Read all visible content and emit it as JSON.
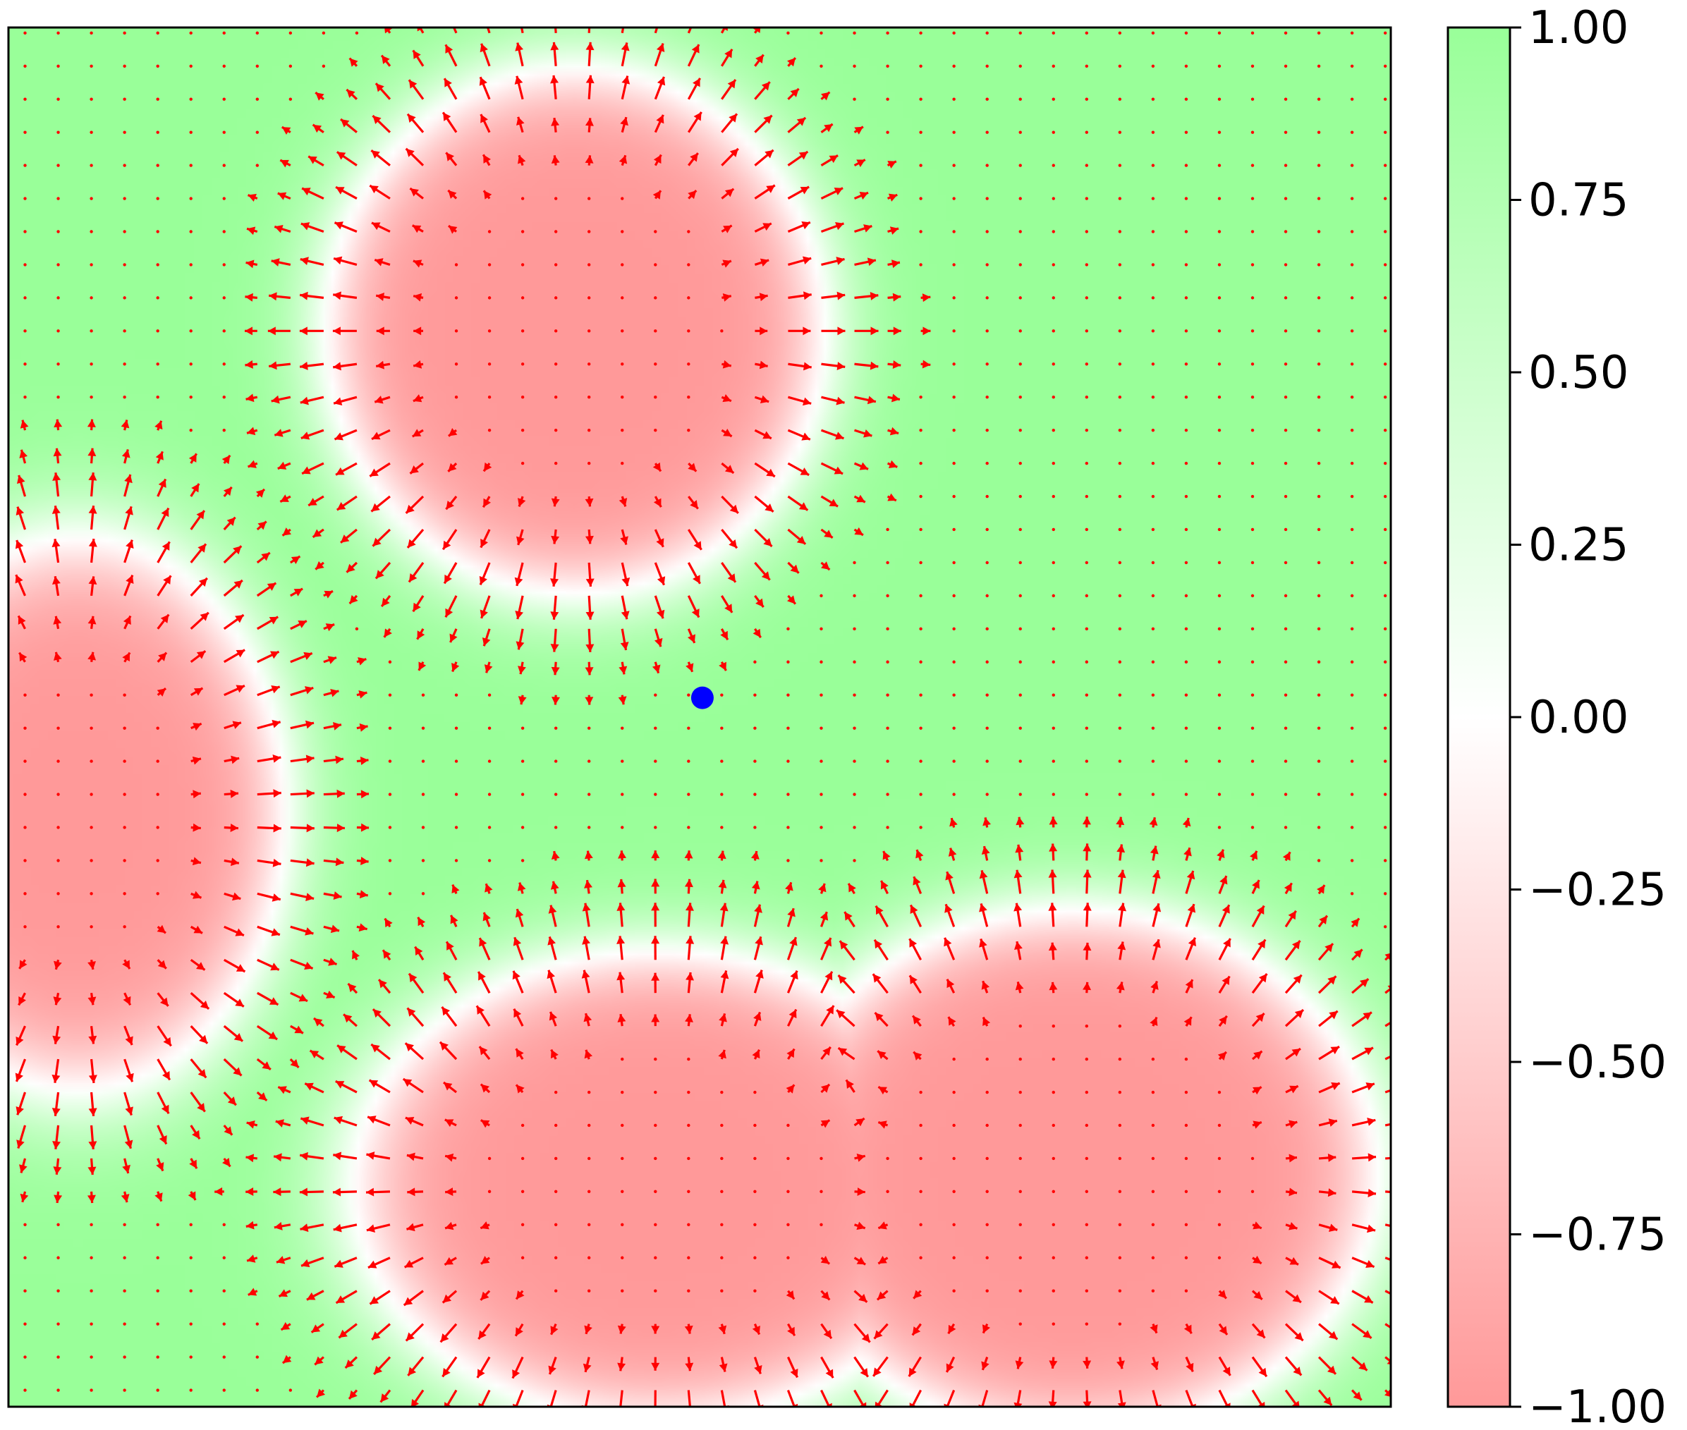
{
  "chart_data": {
    "type": "heatmap",
    "title": "",
    "xlabel": "",
    "ylabel": "",
    "xlim": [
      0,
      1
    ],
    "ylim": [
      0,
      1
    ],
    "grid": false,
    "colormap": {
      "low": "#ff9999",
      "mid": "#ffffff",
      "high": "#99ff99",
      "range": [
        -1.0,
        1.0
      ]
    },
    "colorbar": {
      "ticks": [
        1.0,
        0.75,
        0.5,
        0.25,
        0.0,
        -0.25,
        -0.5,
        -0.75,
        -1.0
      ],
      "tick_labels": [
        "1.00",
        "0.75",
        "0.50",
        "0.25",
        "0.00",
        "−0.25",
        "−0.50",
        "−0.75",
        "−1.00"
      ]
    },
    "field": {
      "description_value_outside": 1.0,
      "description_value_inside": -1.0,
      "regions": [
        {
          "name": "top-blob",
          "cx": 0.41,
          "cy": 0.78,
          "rx": 0.18,
          "ry": 0.19
        },
        {
          "name": "left-blob",
          "cx": 0.05,
          "cy": 0.43,
          "rx": 0.15,
          "ry": 0.2
        },
        {
          "name": "bottom-left-lobe",
          "cx": 0.47,
          "cy": 0.16,
          "rx": 0.22,
          "ry": 0.17
        },
        {
          "name": "bottom-right-lobe",
          "cx": 0.77,
          "cy": 0.17,
          "rx": 0.22,
          "ry": 0.19
        }
      ],
      "interface_width": 0.035
    },
    "vector_field": {
      "color": "#ff0000",
      "grid_spacing": 0.024,
      "direction": "outward normal at interface"
    },
    "marker": {
      "x": 0.502,
      "y": 0.514,
      "color": "#0000ff"
    }
  }
}
